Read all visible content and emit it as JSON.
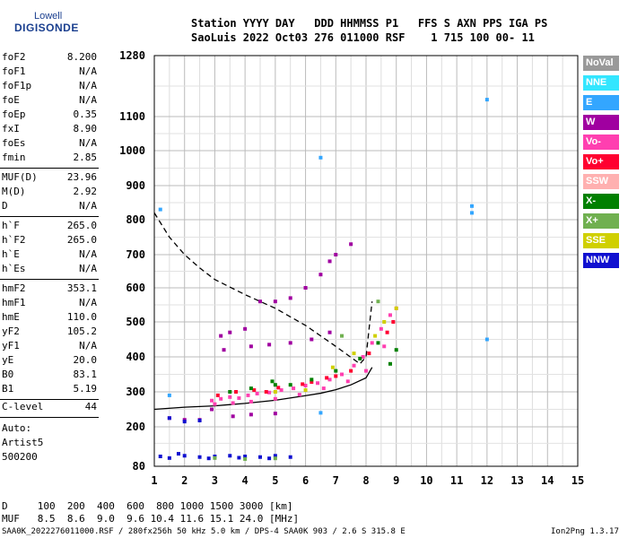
{
  "header": {
    "logo_line1": "Lowell",
    "logo_line2": "DIGISONDE",
    "title_line1": "Station YYYY DAY   DDD HHMMSS P1   FFS S AXN PPS IGA PS",
    "title_line2": "SaoLuis 2022 Oct03 276 011000 RSF    1 715 100 00- 11"
  },
  "params_group1": [
    {
      "name": "foF2",
      "value": "8.200"
    },
    {
      "name": "foF1",
      "value": "N/A"
    },
    {
      "name": "foF1p",
      "value": "N/A"
    },
    {
      "name": "foE",
      "value": "N/A"
    },
    {
      "name": "foEp",
      "value": "0.35"
    },
    {
      "name": "fxI",
      "value": "8.90"
    },
    {
      "name": "foEs",
      "value": "N/A"
    },
    {
      "name": "fmin",
      "value": "2.85"
    }
  ],
  "params_group2": [
    {
      "name": "MUF(D)",
      "value": "23.96"
    },
    {
      "name": "M(D)",
      "value": "2.92"
    },
    {
      "name": "D",
      "value": "N/A"
    }
  ],
  "params_group3": [
    {
      "name": "h`F",
      "value": "265.0"
    },
    {
      "name": "h`F2",
      "value": "265.0"
    },
    {
      "name": "h`E",
      "value": "N/A"
    },
    {
      "name": "h`Es",
      "value": "N/A"
    }
  ],
  "params_group4": [
    {
      "name": "hmF2",
      "value": "353.1"
    },
    {
      "name": "hmF1",
      "value": "N/A"
    },
    {
      "name": "hmE",
      "value": "110.0"
    },
    {
      "name": "yF2",
      "value": "105.2"
    },
    {
      "name": "yF1",
      "value": "N/A"
    },
    {
      "name": "yE",
      "value": "20.0"
    },
    {
      "name": "B0",
      "value": "83.1"
    },
    {
      "name": "B1",
      "value": "5.19"
    }
  ],
  "clevel": {
    "name": "C-level",
    "value": "44"
  },
  "auto": {
    "line1": "Auto:",
    "line2": "Artist5",
    "line3": "500200"
  },
  "legend": [
    {
      "label": "NoVal",
      "color": "#999999"
    },
    {
      "label": "NNE",
      "color": "#33e6ff"
    },
    {
      "label": "E",
      "color": "#33a6ff"
    },
    {
      "label": "W",
      "color": "#a000a0"
    },
    {
      "label": "Vo-",
      "color": "#ff3fb0"
    },
    {
      "label": "Vo+",
      "color": "#ff0030"
    },
    {
      "label": "SSW",
      "color": "#ffb0b0"
    },
    {
      "label": "X-",
      "color": "#008000"
    },
    {
      "label": "X+",
      "color": "#70b050"
    },
    {
      "label": "SSE",
      "color": "#d0d000"
    },
    {
      "label": "NNW",
      "color": "#1010d0"
    }
  ],
  "footer": {
    "d_line": "D     100  200  400  600  800 1000 1500 3000 [km]",
    "muf_line": "MUF   8.5  8.6  9.0  9.6 10.4 11.6 15.1 24.0 [MHz]",
    "file_line": "SAA0K_2022276011000.RSF / 280fx256h 50 kHz 5.0 km / DPS-4 SAA0K 903 / 2.6 S 315.8 E",
    "version": "Ion2Png 1.3.17"
  },
  "chart_data": {
    "type": "scatter",
    "x_ticks": [
      "1",
      "2",
      "3",
      "4",
      "5",
      "6",
      "7",
      "8",
      "9",
      "10",
      "11",
      "12",
      "13",
      "14",
      "15"
    ],
    "y_ticks": [
      "80",
      "200",
      "300",
      "400",
      "500",
      "600",
      "700",
      "800",
      "900",
      "1000",
      "1100",
      "1280"
    ],
    "xlim": [
      1,
      15
    ],
    "ylim": [
      80,
      1280
    ],
    "grid": true,
    "series": [
      {
        "type": "line",
        "style": "solid",
        "points": [
          [
            1,
            250
          ],
          [
            2,
            256
          ],
          [
            3,
            260
          ],
          [
            4,
            267
          ],
          [
            5,
            276
          ],
          [
            6,
            289
          ],
          [
            6.5,
            296
          ],
          [
            7,
            306
          ],
          [
            7.5,
            320
          ],
          [
            8,
            340
          ],
          [
            8.2,
            370
          ]
        ]
      },
      {
        "type": "line",
        "style": "dashed",
        "points": [
          [
            1,
            820
          ],
          [
            1.5,
            750
          ],
          [
            2,
            700
          ],
          [
            2.5,
            660
          ],
          [
            3,
            625
          ],
          [
            4,
            580
          ],
          [
            5,
            540
          ],
          [
            6,
            490
          ],
          [
            7,
            430
          ],
          [
            7.8,
            380
          ],
          [
            8,
            400
          ],
          [
            8.1,
            480
          ],
          [
            8.2,
            560
          ]
        ]
      },
      {
        "type": "points",
        "name": "Vo-",
        "points": [
          [
            2.9,
            275
          ],
          [
            3.2,
            280
          ],
          [
            3.5,
            285
          ],
          [
            3.8,
            282
          ],
          [
            4.1,
            290
          ],
          [
            4.4,
            295
          ],
          [
            4.8,
            298
          ],
          [
            5.2,
            305
          ],
          [
            5.6,
            310
          ],
          [
            6,
            318
          ],
          [
            6.4,
            325
          ],
          [
            6.8,
            335
          ],
          [
            7.2,
            350
          ],
          [
            7.6,
            375
          ],
          [
            7.9,
            400
          ],
          [
            8.2,
            440
          ],
          [
            8.5,
            480
          ],
          [
            8.8,
            520
          ],
          [
            9,
            540
          ],
          [
            3,
            265
          ],
          [
            3.6,
            268
          ],
          [
            4.2,
            272
          ],
          [
            5,
            280
          ],
          [
            5.8,
            292
          ],
          [
            6.6,
            310
          ],
          [
            7.4,
            330
          ],
          [
            8,
            360
          ],
          [
            8.6,
            430
          ]
        ]
      },
      {
        "type": "points",
        "name": "Vo+",
        "points": [
          [
            3.1,
            290
          ],
          [
            3.7,
            300
          ],
          [
            4.3,
            305
          ],
          [
            5.1,
            312
          ],
          [
            5.9,
            322
          ],
          [
            6.7,
            340
          ],
          [
            7.5,
            360
          ],
          [
            8.1,
            410
          ],
          [
            8.7,
            470
          ],
          [
            8.9,
            500
          ],
          [
            7,
            345
          ],
          [
            6.2,
            328
          ],
          [
            4.7,
            300
          ]
        ]
      },
      {
        "type": "points",
        "name": "W",
        "points": [
          [
            3.2,
            460
          ],
          [
            3.5,
            470
          ],
          [
            4,
            480
          ],
          [
            4.5,
            560
          ],
          [
            5,
            560
          ],
          [
            5.5,
            570
          ],
          [
            6,
            600
          ],
          [
            6.5,
            640
          ],
          [
            7,
            700
          ],
          [
            7.5,
            730
          ],
          [
            3.3,
            420
          ],
          [
            4.2,
            430
          ],
          [
            4.8,
            435
          ],
          [
            5.5,
            440
          ],
          [
            6.2,
            450
          ],
          [
            6.8,
            470
          ],
          [
            2.9,
            250
          ],
          [
            3.6,
            230
          ],
          [
            4.2,
            235
          ],
          [
            5,
            238
          ],
          [
            1.5,
            225
          ],
          [
            2,
            220
          ],
          [
            2.5,
            220
          ],
          [
            6,
            600
          ],
          [
            6.8,
            680
          ]
        ]
      },
      {
        "type": "points",
        "name": "X-",
        "points": [
          [
            3.5,
            300
          ],
          [
            4.2,
            310
          ],
          [
            5,
            320
          ],
          [
            5.5,
            320
          ],
          [
            6.2,
            335
          ],
          [
            7,
            360
          ],
          [
            7.8,
            395
          ],
          [
            8.4,
            440
          ],
          [
            9,
            420
          ],
          [
            8.8,
            380
          ],
          [
            4.9,
            330
          ]
        ]
      },
      {
        "type": "points",
        "name": "SSE",
        "points": [
          [
            5,
            300
          ],
          [
            6,
            305
          ],
          [
            6.9,
            370
          ],
          [
            7.6,
            410
          ],
          [
            8.3,
            460
          ],
          [
            8.6,
            500
          ],
          [
            9,
            540
          ]
        ]
      },
      {
        "type": "points",
        "name": "NNW",
        "points": [
          [
            1.2,
            110
          ],
          [
            1.5,
            105
          ],
          [
            2,
            112
          ],
          [
            2.5,
            108
          ],
          [
            3,
            110
          ],
          [
            3.5,
            112
          ],
          [
            4,
            110
          ],
          [
            4.5,
            108
          ],
          [
            5,
            112
          ],
          [
            5.5,
            108
          ],
          [
            1.8,
            118
          ],
          [
            2.8,
            104
          ],
          [
            3.8,
            106
          ],
          [
            4.8,
            104
          ],
          [
            1.5,
            225
          ],
          [
            2,
            215
          ],
          [
            2.5,
            218
          ]
        ]
      },
      {
        "type": "points",
        "name": "E",
        "points": [
          [
            6.5,
            980
          ],
          [
            6.5,
            240
          ],
          [
            11.5,
            840
          ],
          [
            11.5,
            820
          ],
          [
            12,
            1150
          ],
          [
            12,
            450
          ],
          [
            1.5,
            290
          ],
          [
            1.2,
            830
          ]
        ]
      },
      {
        "type": "points",
        "name": "X+",
        "points": [
          [
            3,
            105
          ],
          [
            4,
            102
          ],
          [
            5,
            104
          ],
          [
            7.2,
            460
          ],
          [
            8.4,
            560
          ]
        ]
      }
    ]
  }
}
